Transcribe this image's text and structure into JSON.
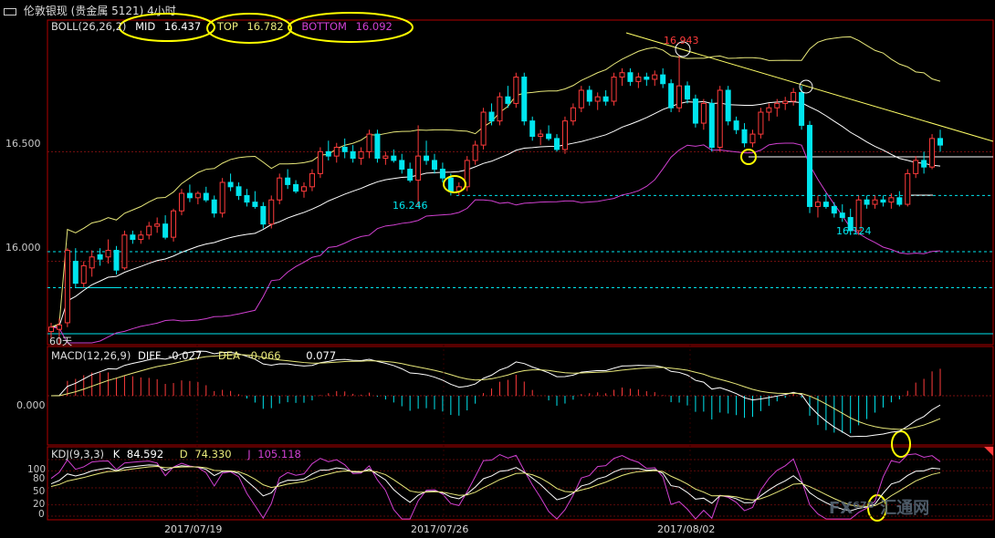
{
  "window": {
    "icon": "window-icon",
    "title": "伦敦银现 (贵金属 5121) 4小时"
  },
  "colors": {
    "background": "#000000",
    "frame": "#b00000",
    "up": "#ff3b3b",
    "down": "#00e5ee",
    "mid_band": "#ffffff",
    "top_band": "#e8e87a",
    "bottom_band": "#d040d0",
    "highlight": "#ffff00",
    "trend_line": "#ffff66",
    "support_line": "#00e5ee"
  },
  "boll_legend": {
    "name": "BOLL(26,26,2)",
    "mid_label": "MID",
    "mid_value": "16.437",
    "top_label": "TOP",
    "top_value": "16.782",
    "bottom_label": "BOTTOM",
    "bottom_value": "16.092"
  },
  "macd_legend": {
    "name": "MACD(12,26,9)",
    "diff_label": "DIFF",
    "diff_value": "-0.027",
    "dea_label": "DEA",
    "dea_value": "-0.066",
    "macd_value": "0.077"
  },
  "kdj_legend": {
    "name": "KDJ(9,3,3)",
    "k_label": "K",
    "k_value": "84.592",
    "d_label": "D",
    "d_value": "74.330",
    "j_label": "J",
    "j_value": "105.118"
  },
  "price_axis": {
    "ticks": [
      "16.500",
      "16.000"
    ]
  },
  "macd_axis": {
    "ticks": [
      "0.000"
    ]
  },
  "kdj_axis": {
    "ticks": [
      "100",
      "80",
      "50",
      "20",
      "0"
    ]
  },
  "x_axis": {
    "ticks": [
      "2017/07/19",
      "2017/07/26",
      "2017/08/02"
    ]
  },
  "annotations": {
    "high_label": "16.943",
    "low_label_1": "16.246",
    "low_label_2": "16.124",
    "period_label": "60天"
  },
  "watermark": {
    "text": "FX⁶⁷⁸ 汇通网"
  },
  "chart_data": {
    "type": "candlestick",
    "title": "伦敦银现 (贵金属 5121) 4小时",
    "x_ticks": [
      "2017/07/19",
      "2017/07/26",
      "2017/08/02"
    ],
    "price_ticks": [
      16.0,
      16.5
    ],
    "ohlc": [
      [
        15.68,
        15.72,
        15.65,
        15.7
      ],
      [
        15.69,
        15.74,
        15.62,
        15.71
      ],
      [
        15.72,
        16.06,
        15.7,
        16.05
      ],
      [
        16.0,
        16.06,
        15.88,
        15.9
      ],
      [
        15.9,
        16.0,
        15.88,
        15.98
      ],
      [
        15.97,
        16.05,
        15.93,
        16.02
      ],
      [
        16.03,
        16.06,
        15.98,
        16.01
      ],
      [
        16.02,
        16.1,
        15.99,
        16.05
      ],
      [
        16.05,
        16.07,
        15.94,
        15.96
      ],
      [
        15.97,
        16.14,
        15.96,
        16.12
      ],
      [
        16.12,
        16.14,
        16.08,
        16.1
      ],
      [
        16.1,
        16.14,
        16.08,
        16.12
      ],
      [
        16.12,
        16.18,
        16.1,
        16.16
      ],
      [
        16.16,
        16.2,
        16.13,
        16.17
      ],
      [
        16.17,
        16.21,
        16.1,
        16.11
      ],
      [
        16.11,
        16.24,
        16.09,
        16.23
      ],
      [
        16.23,
        16.33,
        16.21,
        16.31
      ],
      [
        16.31,
        16.35,
        16.27,
        16.29
      ],
      [
        16.29,
        16.32,
        16.26,
        16.31
      ],
      [
        16.31,
        16.34,
        16.27,
        16.28
      ],
      [
        16.28,
        16.3,
        16.2,
        16.22
      ],
      [
        16.22,
        16.38,
        16.2,
        16.36
      ],
      [
        16.36,
        16.4,
        16.32,
        16.34
      ],
      [
        16.34,
        16.36,
        16.28,
        16.3
      ],
      [
        16.3,
        16.33,
        16.25,
        16.27
      ],
      [
        16.27,
        16.32,
        16.24,
        16.25
      ],
      [
        16.25,
        16.27,
        16.15,
        16.17
      ],
      [
        16.17,
        16.3,
        16.15,
        16.28
      ],
      [
        16.28,
        16.4,
        16.26,
        16.38
      ],
      [
        16.38,
        16.42,
        16.33,
        16.35
      ],
      [
        16.35,
        16.37,
        16.31,
        16.32
      ],
      [
        16.32,
        16.36,
        16.29,
        16.34
      ],
      [
        16.34,
        16.42,
        16.32,
        16.4
      ],
      [
        16.4,
        16.52,
        16.38,
        16.5
      ],
      [
        16.5,
        16.55,
        16.46,
        16.48
      ],
      [
        16.48,
        16.54,
        16.45,
        16.52
      ],
      [
        16.52,
        16.56,
        16.47,
        16.5
      ],
      [
        16.5,
        16.53,
        16.45,
        16.47
      ],
      [
        16.47,
        16.52,
        16.44,
        16.5
      ],
      [
        16.5,
        16.6,
        16.47,
        16.58
      ],
      [
        16.58,
        16.6,
        16.45,
        16.47
      ],
      [
        16.47,
        16.5,
        16.44,
        16.48
      ],
      [
        16.48,
        16.51,
        16.45,
        16.46
      ],
      [
        16.46,
        16.49,
        16.4,
        16.42
      ],
      [
        16.42,
        16.45,
        16.36,
        16.37
      ],
      [
        16.37,
        16.62,
        16.25,
        16.48
      ],
      [
        16.48,
        16.55,
        16.44,
        16.46
      ],
      [
        16.46,
        16.49,
        16.4,
        16.42
      ],
      [
        16.42,
        16.45,
        16.36,
        16.38
      ],
      [
        16.38,
        16.4,
        16.3,
        16.32
      ],
      [
        16.32,
        16.36,
        16.3,
        16.34
      ],
      [
        16.34,
        16.48,
        16.32,
        16.46
      ],
      [
        16.46,
        16.55,
        16.44,
        16.53
      ],
      [
        16.53,
        16.7,
        16.51,
        16.68
      ],
      [
        16.68,
        16.72,
        16.62,
        16.64
      ],
      [
        16.64,
        16.77,
        16.62,
        16.75
      ],
      [
        16.75,
        16.8,
        16.7,
        16.72
      ],
      [
        16.72,
        16.86,
        16.7,
        16.84
      ],
      [
        16.84,
        16.86,
        16.62,
        16.64
      ],
      [
        16.64,
        16.66,
        16.55,
        16.57
      ],
      [
        16.57,
        16.6,
        16.53,
        16.58
      ],
      [
        16.58,
        16.62,
        16.55,
        16.56
      ],
      [
        16.56,
        16.58,
        16.5,
        16.51
      ],
      [
        16.51,
        16.66,
        16.49,
        16.64
      ],
      [
        16.64,
        16.72,
        16.62,
        16.7
      ],
      [
        16.7,
        16.8,
        16.68,
        16.78
      ],
      [
        16.78,
        16.8,
        16.71,
        16.73
      ],
      [
        16.73,
        16.77,
        16.69,
        16.75
      ],
      [
        16.75,
        16.78,
        16.71,
        16.73
      ],
      [
        16.73,
        16.86,
        16.71,
        16.84
      ],
      [
        16.84,
        16.88,
        16.8,
        16.86
      ],
      [
        16.86,
        16.88,
        16.8,
        16.82
      ],
      [
        16.82,
        16.86,
        16.79,
        16.84
      ],
      [
        16.84,
        16.86,
        16.8,
        16.83
      ],
      [
        16.83,
        16.87,
        16.8,
        16.85
      ],
      [
        16.85,
        16.88,
        16.79,
        16.81
      ],
      [
        16.81,
        16.83,
        16.68,
        16.7
      ],
      [
        16.7,
        16.94,
        16.68,
        16.8
      ],
      [
        16.8,
        16.82,
        16.72,
        16.74
      ],
      [
        16.74,
        16.76,
        16.61,
        16.63
      ],
      [
        16.63,
        16.74,
        16.6,
        16.72
      ],
      [
        16.72,
        16.74,
        16.5,
        16.52
      ],
      [
        16.52,
        16.8,
        16.5,
        16.78
      ],
      [
        16.78,
        16.8,
        16.62,
        16.64
      ],
      [
        16.64,
        16.66,
        16.58,
        16.6
      ],
      [
        16.6,
        16.63,
        16.52,
        16.54
      ],
      [
        16.54,
        16.6,
        16.52,
        16.58
      ],
      [
        16.58,
        16.7,
        16.56,
        16.68
      ],
      [
        16.68,
        16.72,
        16.64,
        16.7
      ],
      [
        16.7,
        16.74,
        16.66,
        16.72
      ],
      [
        16.72,
        16.75,
        16.69,
        16.73
      ],
      [
        16.73,
        16.79,
        16.71,
        16.77
      ],
      [
        16.77,
        16.8,
        16.6,
        16.62
      ],
      [
        16.62,
        16.64,
        16.22,
        16.25
      ],
      [
        16.25,
        16.3,
        16.2,
        16.27
      ],
      [
        16.27,
        16.31,
        16.24,
        16.25
      ],
      [
        16.25,
        16.27,
        16.2,
        16.22
      ],
      [
        16.22,
        16.26,
        16.18,
        16.2
      ],
      [
        16.2,
        16.24,
        16.12,
        16.14
      ],
      [
        16.14,
        16.3,
        16.12,
        16.28
      ],
      [
        16.28,
        16.3,
        16.24,
        16.26
      ],
      [
        16.26,
        16.3,
        16.24,
        16.28
      ],
      [
        16.28,
        16.3,
        16.25,
        16.27
      ],
      [
        16.27,
        16.31,
        16.24,
        16.29
      ],
      [
        16.29,
        16.32,
        16.25,
        16.26
      ],
      [
        16.26,
        16.42,
        16.25,
        16.4
      ],
      [
        16.4,
        16.48,
        16.38,
        16.46
      ],
      [
        16.46,
        16.5,
        16.4,
        16.43
      ],
      [
        16.43,
        16.58,
        16.42,
        16.56
      ],
      [
        16.56,
        16.6,
        16.5,
        16.53
      ]
    ],
    "macd_range": [
      -0.15,
      0.15
    ],
    "kdj_range": [
      0,
      100
    ]
  }
}
